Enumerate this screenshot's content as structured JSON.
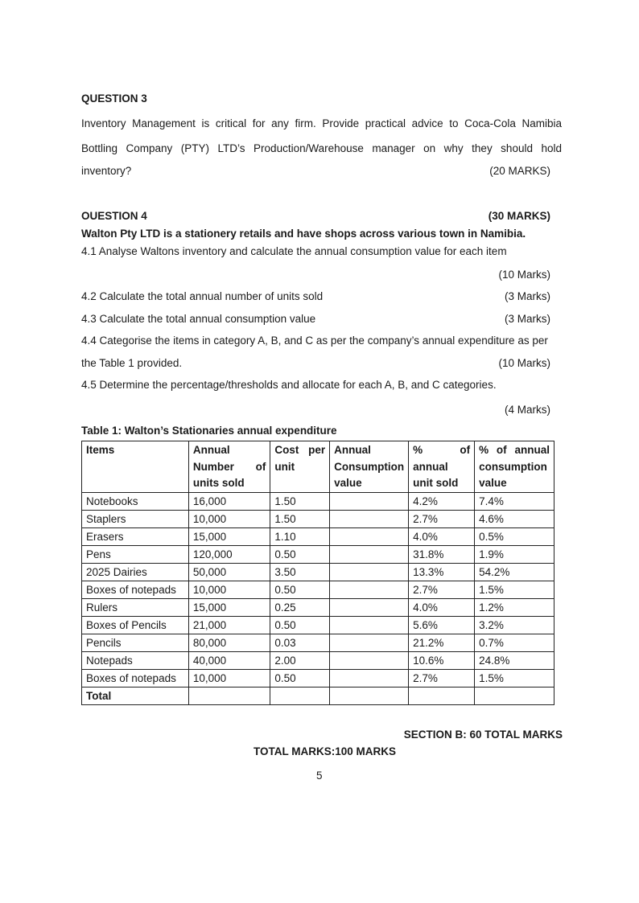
{
  "q3": {
    "heading": "QUESTION 3",
    "lines": [
      "Inventory Management is critical for any firm. Provide practical advice to Coca-Cola Namibia",
      "Bottling Company (PTY) LTD’s Production/Warehouse manager on why they should hold",
      "inventory?"
    ],
    "marks": "(20 MARKS)"
  },
  "q4": {
    "heading": "OUESTION 4",
    "marks": "(30 MARKS)",
    "intro": "Walton Pty LTD is a stationery retails and have shops across various town in Namibia.",
    "q41": "4.1 Analyse Waltons inventory and calculate the annual consumption value for each item",
    "q41_marks": "(10 Marks)",
    "q42": "4.2 Calculate the total annual number of units sold",
    "q42_marks": "(3 Marks)",
    "q43": "4.3 Calculate the total annual consumption value",
    "q43_marks": "(3 Marks)",
    "q44a": "4.4 Categorise the items in category A, B, and C as per the company’s annual expenditure as per",
    "q44b": "the Table 1 provided.",
    "q44_marks": "(10 Marks)",
    "q45": "4.5 Determine the percentage/thresholds and allocate for each A, B, and C categories.",
    "q45_marks": "(4 Marks)"
  },
  "table": {
    "caption": "Table 1: Walton’s Stationaries annual expenditure",
    "headers": {
      "items": "Items",
      "units": [
        "Annual",
        "Number of",
        "units sold"
      ],
      "cost": [
        "Cost per",
        "unit"
      ],
      "acv": [
        "Annual",
        "Consumption",
        "value"
      ],
      "pct_units": [
        "% of",
        "annual",
        "unit sold"
      ],
      "pct_acv": [
        "% of annual",
        "consumption",
        "value"
      ]
    },
    "rows": [
      [
        "Notebooks",
        "16,000",
        "1.50",
        "",
        "4.2%",
        "7.4%"
      ],
      [
        "Staplers",
        "10,000",
        "1.50",
        "",
        "2.7%",
        "4.6%"
      ],
      [
        "Erasers",
        "15,000",
        "1.10",
        "",
        "4.0%",
        "0.5%"
      ],
      [
        "Pens",
        "120,000",
        "0.50",
        "",
        "31.8%",
        "1.9%"
      ],
      [
        "2025 Dairies",
        "50,000",
        "3.50",
        "",
        "13.3%",
        "54.2%"
      ],
      [
        "Boxes of notepads",
        "10,000",
        "0.50",
        "",
        "2.7%",
        "1.5%"
      ],
      [
        "Rulers",
        "15,000",
        "0.25",
        "",
        "4.0%",
        "1.2%"
      ],
      [
        "Boxes of Pencils",
        "21,000",
        "0.50",
        "",
        "5.6%",
        "3.2%"
      ],
      [
        "Pencils",
        "80,000",
        "0.03",
        "",
        "21.2%",
        "0.7%"
      ],
      [
        "Notepads",
        "40,000",
        "2.00",
        "",
        "10.6%",
        "24.8%"
      ],
      [
        "Boxes of notepads",
        "10,000",
        "0.50",
        "",
        "2.7%",
        "1.5%"
      ]
    ],
    "total_label": "Total"
  },
  "footer": {
    "section": "SECTION B: 60 TOTAL MARKS",
    "total": "TOTAL MARKS:100 MARKS",
    "page": "5"
  }
}
